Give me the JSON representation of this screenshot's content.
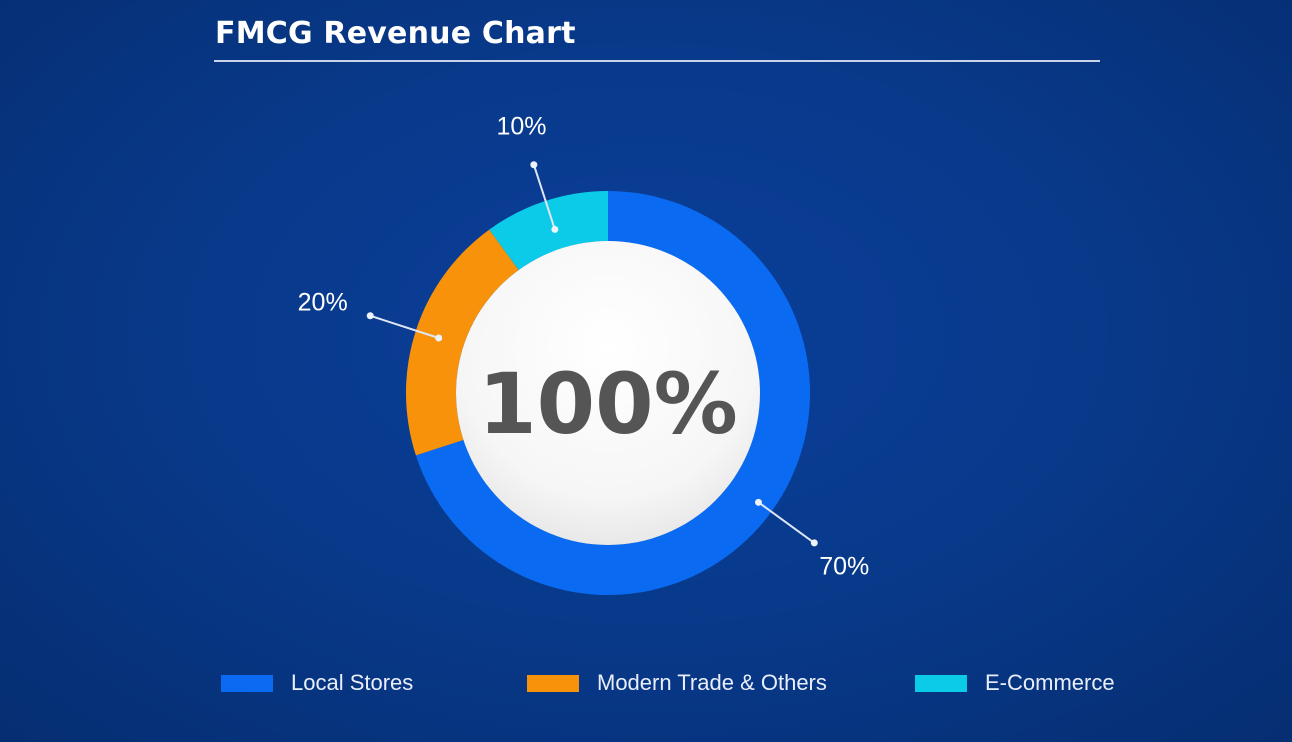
{
  "header": {
    "title": "FMCG Revenue Chart"
  },
  "chart_data": {
    "type": "pie",
    "variant": "donut",
    "title": "FMCG Revenue Chart",
    "center_label": "100%",
    "categories": [
      "Local Stores",
      "Modern Trade & Others",
      "E-Commerce"
    ],
    "values": [
      70,
      20,
      10
    ],
    "data_labels": [
      "70%",
      "20%",
      "10%"
    ],
    "colors": [
      "#0a6bf2",
      "#f7920a",
      "#0ccbe8"
    ],
    "legend_position": "bottom"
  }
}
